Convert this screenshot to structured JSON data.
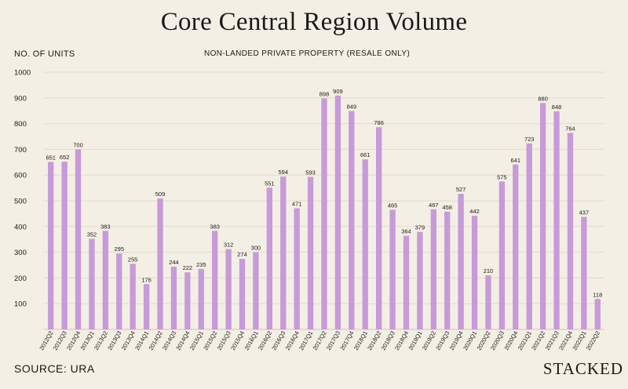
{
  "chart_data": {
    "type": "bar",
    "title": "Core Central Region Volume",
    "subtitle": "NON-LANDED PRIVATE PROPERTY (RESALE ONLY)",
    "ylabel": "NO. OF UNITS",
    "xlabel": "",
    "ylim": [
      0,
      1000
    ],
    "yticks": [
      100,
      200,
      300,
      400,
      500,
      600,
      700,
      800,
      900,
      1000
    ],
    "grid": true,
    "legend": "none",
    "bar_color": "#c79ad9",
    "categories": [
      "2012Q2",
      "2012Q3",
      "2012Q4",
      "2013Q1",
      "2013Q2",
      "2013Q3",
      "2013Q4",
      "2014Q1",
      "2014Q2",
      "2014Q3",
      "2014Q4",
      "2015Q1",
      "2015Q2",
      "2015Q3",
      "2015Q4",
      "2016Q1",
      "2016Q2",
      "2016Q3",
      "2016Q4",
      "2017Q1",
      "2017Q2",
      "2017Q3",
      "2017Q4",
      "2018Q1",
      "2018Q2",
      "2018Q3",
      "2018Q4",
      "2019Q1",
      "2019Q2",
      "2019Q3",
      "2019Q4",
      "2020Q1",
      "2020Q2",
      "2020Q3",
      "2020Q4",
      "2021Q1",
      "2021Q2",
      "2021Q3",
      "2021Q4",
      "2022Q1",
      "2022Q2"
    ],
    "values": [
      651,
      652,
      700,
      352,
      383,
      295,
      255,
      176,
      509,
      244,
      222,
      235,
      383,
      312,
      274,
      300,
      551,
      594,
      471,
      593,
      898,
      909,
      849,
      661,
      786,
      465,
      364,
      379,
      467,
      458,
      527,
      442,
      210,
      575,
      641,
      723,
      880,
      848,
      764,
      437,
      118
    ]
  },
  "footer": {
    "source": "SOURCE: URA",
    "brand": "STACKED"
  }
}
